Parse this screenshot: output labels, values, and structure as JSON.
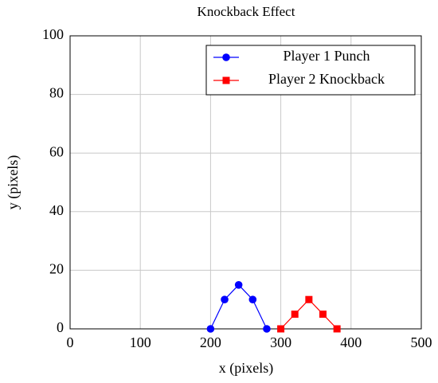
{
  "chart_data": {
    "type": "line",
    "title": "Knockback Effect",
    "xlabel": "x (pixels)",
    "ylabel": "y (pixels)",
    "series": [
      {
        "name": "Player 1 Punch",
        "color": "#0000ff",
        "marker": "circle",
        "x": [
          200,
          220,
          240,
          260,
          280
        ],
        "values": [
          0,
          10,
          15,
          10,
          0
        ]
      },
      {
        "name": "Player 2 Knockback",
        "color": "#ff0000",
        "marker": "square",
        "x": [
          300,
          320,
          340,
          360,
          380
        ],
        "values": [
          0,
          5,
          10,
          5,
          0
        ]
      }
    ],
    "xlim": [
      0,
      500
    ],
    "xticks": [
      0,
      100,
      200,
      300,
      400,
      500
    ],
    "ylim": [
      0,
      100
    ],
    "yticks": [
      0,
      20,
      40,
      60,
      80,
      100
    ],
    "grid": true,
    "legend": "top-right"
  }
}
